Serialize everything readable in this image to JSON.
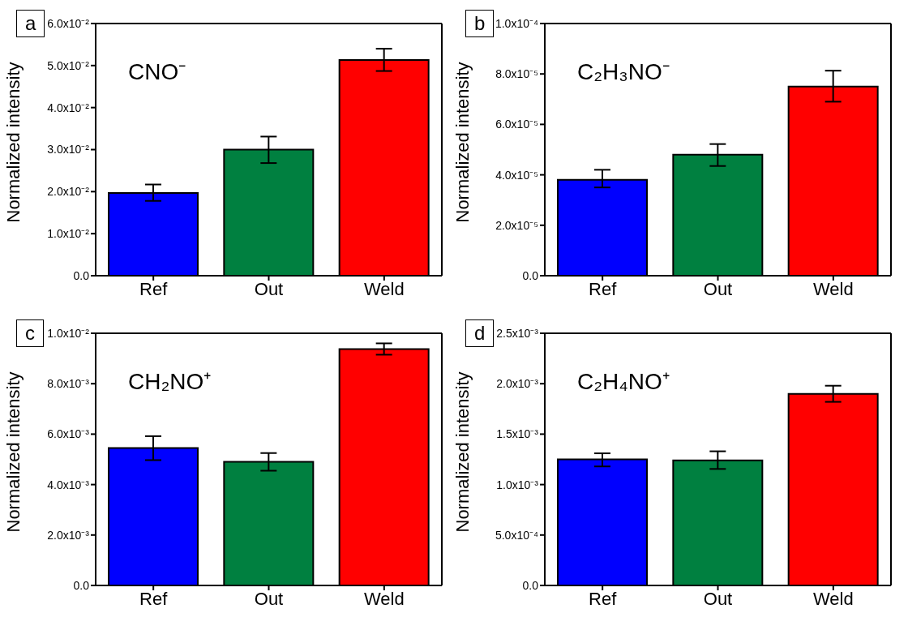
{
  "chart_data": [
    {
      "type": "bar",
      "title": "CNO⁻",
      "annotations": [
        "a"
      ],
      "ylabel": "Normalized intensity",
      "categories": [
        "Ref",
        "Out",
        "Weld"
      ],
      "values": [
        0.0197,
        0.03,
        0.0513
      ],
      "errors": [
        [
          0.0178,
          0.0217
        ],
        [
          0.0268,
          0.0331
        ],
        [
          0.0487,
          0.054
        ]
      ],
      "colors": [
        "#0000ff",
        "#008040",
        "#ff0000"
      ],
      "ylim": [
        0,
        0.06
      ],
      "yticks": [
        {
          "value": 0,
          "label": "0.0"
        },
        {
          "value": 0.01,
          "label": "1.0x10⁻²"
        },
        {
          "value": 0.02,
          "label": "2.0x10⁻²"
        },
        {
          "value": 0.03,
          "label": "3.0x10⁻²"
        },
        {
          "value": 0.04,
          "label": "4.0x10⁻²"
        },
        {
          "value": 0.05,
          "label": "5.0x10⁻²"
        },
        {
          "value": 0.06,
          "label": "6.0x10⁻²"
        }
      ],
      "grid": false,
      "legend": false
    },
    {
      "type": "bar",
      "title": "C₂H₃NO⁻",
      "annotations": [
        "b"
      ],
      "ylabel": "Normalized intensity",
      "categories": [
        "Ref",
        "Out",
        "Weld"
      ],
      "values": [
        3.8e-05,
        4.8e-05,
        7.5e-05
      ],
      "errors": [
        [
          3.5e-05,
          4.2e-05
        ],
        [
          4.35e-05,
          5.22e-05
        ],
        [
          6.9e-05,
          8.13e-05
        ]
      ],
      "colors": [
        "#0000ff",
        "#008040",
        "#ff0000"
      ],
      "ylim": [
        0,
        0.0001
      ],
      "yticks": [
        {
          "value": 0,
          "label": "0.0"
        },
        {
          "value": 2e-05,
          "label": "2.0x10⁻⁵"
        },
        {
          "value": 4e-05,
          "label": "4.0x10⁻⁵"
        },
        {
          "value": 6e-05,
          "label": "6.0x10⁻⁵"
        },
        {
          "value": 8e-05,
          "label": "8.0x10⁻⁵"
        },
        {
          "value": 0.0001,
          "label": "1.0x10⁻⁴"
        }
      ],
      "grid": false,
      "legend": false
    },
    {
      "type": "bar",
      "title": "CH₂NO⁺",
      "annotations": [
        "c"
      ],
      "ylabel": "Normalized intensity",
      "categories": [
        "Ref",
        "Out",
        "Weld"
      ],
      "values": [
        0.00545,
        0.0049,
        0.00937
      ],
      "errors": [
        [
          0.00497,
          0.00592
        ],
        [
          0.00455,
          0.00525
        ],
        [
          0.00915,
          0.0096
        ]
      ],
      "colors": [
        "#0000ff",
        "#008040",
        "#ff0000"
      ],
      "ylim": [
        0,
        0.01
      ],
      "yticks": [
        {
          "value": 0,
          "label": "0.0"
        },
        {
          "value": 0.002,
          "label": "2.0x10⁻³"
        },
        {
          "value": 0.004,
          "label": "4.0x10⁻³"
        },
        {
          "value": 0.006,
          "label": "6.0x10⁻³"
        },
        {
          "value": 0.008,
          "label": "8.0x10⁻³"
        },
        {
          "value": 0.01,
          "label": "1.0x10⁻²"
        }
      ],
      "grid": false,
      "legend": false
    },
    {
      "type": "bar",
      "title": "C₂H₄NO⁺",
      "annotations": [
        "d"
      ],
      "ylabel": "Normalized intensity",
      "categories": [
        "Ref",
        "Out",
        "Weld"
      ],
      "values": [
        0.00125,
        0.00124,
        0.0019
      ],
      "errors": [
        [
          0.00118,
          0.00131
        ],
        [
          0.001155,
          0.00133
        ],
        [
          0.00182,
          0.00198
        ]
      ],
      "colors": [
        "#0000ff",
        "#008040",
        "#ff0000"
      ],
      "ylim": [
        0,
        0.0025
      ],
      "yticks": [
        {
          "value": 0,
          "label": "0.0"
        },
        {
          "value": 0.0005,
          "label": "5.0x10⁻⁴"
        },
        {
          "value": 0.001,
          "label": "1.0x10⁻³"
        },
        {
          "value": 0.0015,
          "label": "1.5x10⁻³"
        },
        {
          "value": 0.002,
          "label": "2.0x10⁻³"
        },
        {
          "value": 0.0025,
          "label": "2.5x10⁻³"
        }
      ],
      "grid": false,
      "legend": false
    }
  ]
}
